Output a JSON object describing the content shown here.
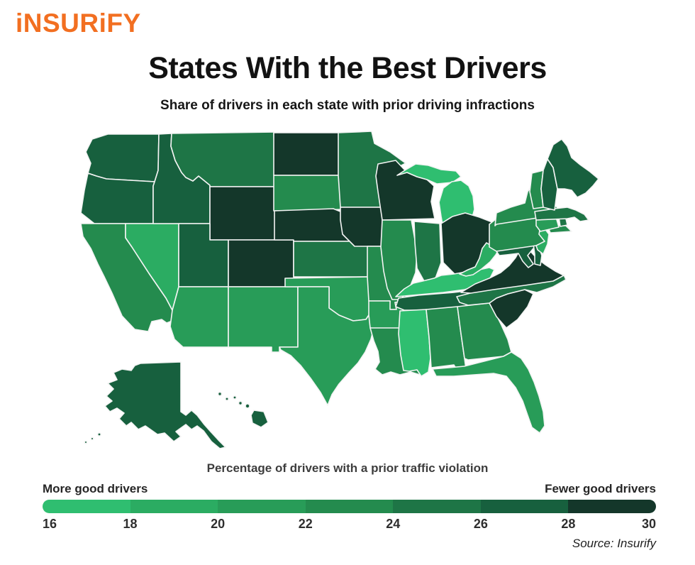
{
  "logo": {
    "text": "iNSURiFY",
    "color": "#F26F21"
  },
  "header": {
    "title": "States With the Best Drivers",
    "subtitle": "Share of drivers in each state with prior driving infractions"
  },
  "legend": {
    "title": "Percentage of drivers with a prior traffic violation",
    "left_label": "More good drivers",
    "right_label": "Fewer good drivers",
    "ticks": [
      "16",
      "18",
      "20",
      "22",
      "24",
      "26",
      "28",
      "30"
    ],
    "colors": [
      "#2FBE70",
      "#2BAC62",
      "#289C58",
      "#248B4E",
      "#1E7546",
      "#17603E",
      "#14372A"
    ]
  },
  "source": "Source: Insurify",
  "chart_data": {
    "type": "heatmap",
    "subtype": "us-state-choropleth",
    "title": "States With the Best Drivers",
    "subtitle": "Share of drivers in each state with prior driving infractions",
    "unit": "%",
    "colorbar": {
      "label": "Percentage of drivers with a prior traffic violation",
      "range": [
        16,
        30
      ],
      "ticks": [
        16,
        18,
        20,
        22,
        24,
        26,
        28,
        30
      ],
      "low_label": "More good drivers",
      "high_label": "Fewer good drivers",
      "colors": [
        "#2FBE70",
        "#2BAC62",
        "#289C58",
        "#248B4E",
        "#1E7546",
        "#17603E",
        "#14372A"
      ]
    },
    "note": "Per-state percentages estimated from map shading (midpoint of each 2-point color bucket)",
    "states": [
      {
        "abbr": "WA",
        "name": "Washington",
        "value": 27
      },
      {
        "abbr": "OR",
        "name": "Oregon",
        "value": 27
      },
      {
        "abbr": "CA",
        "name": "California",
        "value": 23
      },
      {
        "abbr": "NV",
        "name": "Nevada",
        "value": 19
      },
      {
        "abbr": "ID",
        "name": "Idaho",
        "value": 27
      },
      {
        "abbr": "MT",
        "name": "Montana",
        "value": 25
      },
      {
        "abbr": "WY",
        "name": "Wyoming",
        "value": 29
      },
      {
        "abbr": "UT",
        "name": "Utah",
        "value": 27
      },
      {
        "abbr": "CO",
        "name": "Colorado",
        "value": 29
      },
      {
        "abbr": "AZ",
        "name": "Arizona",
        "value": 21
      },
      {
        "abbr": "NM",
        "name": "New Mexico",
        "value": 21
      },
      {
        "abbr": "ND",
        "name": "North Dakota",
        "value": 29
      },
      {
        "abbr": "SD",
        "name": "South Dakota",
        "value": 23
      },
      {
        "abbr": "NE",
        "name": "Nebraska",
        "value": 29
      },
      {
        "abbr": "KS",
        "name": "Kansas",
        "value": 25
      },
      {
        "abbr": "OK",
        "name": "Oklahoma",
        "value": 21
      },
      {
        "abbr": "TX",
        "name": "Texas",
        "value": 21
      },
      {
        "abbr": "MN",
        "name": "Minnesota",
        "value": 25
      },
      {
        "abbr": "IA",
        "name": "Iowa",
        "value": 29
      },
      {
        "abbr": "MO",
        "name": "Missouri",
        "value": 23
      },
      {
        "abbr": "AR",
        "name": "Arkansas",
        "value": 21
      },
      {
        "abbr": "LA",
        "name": "Louisiana",
        "value": 23
      },
      {
        "abbr": "WI",
        "name": "Wisconsin",
        "value": 29
      },
      {
        "abbr": "IL",
        "name": "Illinois",
        "value": 23
      },
      {
        "abbr": "MI",
        "name": "Michigan",
        "value": 17
      },
      {
        "abbr": "IN",
        "name": "Indiana",
        "value": 25
      },
      {
        "abbr": "OH",
        "name": "Ohio",
        "value": 29
      },
      {
        "abbr": "KY",
        "name": "Kentucky",
        "value": 17
      },
      {
        "abbr": "TN",
        "name": "Tennessee",
        "value": 27
      },
      {
        "abbr": "MS",
        "name": "Mississippi",
        "value": 17
      },
      {
        "abbr": "AL",
        "name": "Alabama",
        "value": 23
      },
      {
        "abbr": "GA",
        "name": "Georgia",
        "value": 23
      },
      {
        "abbr": "FL",
        "name": "Florida",
        "value": 21
      },
      {
        "abbr": "SC",
        "name": "South Carolina",
        "value": 29
      },
      {
        "abbr": "NC",
        "name": "North Carolina",
        "value": 25
      },
      {
        "abbr": "VA",
        "name": "Virginia",
        "value": 29
      },
      {
        "abbr": "WV",
        "name": "West Virginia",
        "value": 19
      },
      {
        "abbr": "MD",
        "name": "Maryland",
        "value": 27
      },
      {
        "abbr": "DE",
        "name": "Delaware",
        "value": 27
      },
      {
        "abbr": "NJ",
        "name": "New Jersey",
        "value": 19
      },
      {
        "abbr": "PA",
        "name": "Pennsylvania",
        "value": 23
      },
      {
        "abbr": "NY",
        "name": "New York",
        "value": 23
      },
      {
        "abbr": "CT",
        "name": "Connecticut",
        "value": 21
      },
      {
        "abbr": "RI",
        "name": "Rhode Island",
        "value": 25
      },
      {
        "abbr": "MA",
        "name": "Massachusetts",
        "value": 25
      },
      {
        "abbr": "VT",
        "name": "Vermont",
        "value": 23
      },
      {
        "abbr": "NH",
        "name": "New Hampshire",
        "value": 27
      },
      {
        "abbr": "ME",
        "name": "Maine",
        "value": 27
      },
      {
        "abbr": "AK",
        "name": "Alaska",
        "value": 27
      },
      {
        "abbr": "HI",
        "name": "Hawaii",
        "value": 27
      }
    ]
  }
}
